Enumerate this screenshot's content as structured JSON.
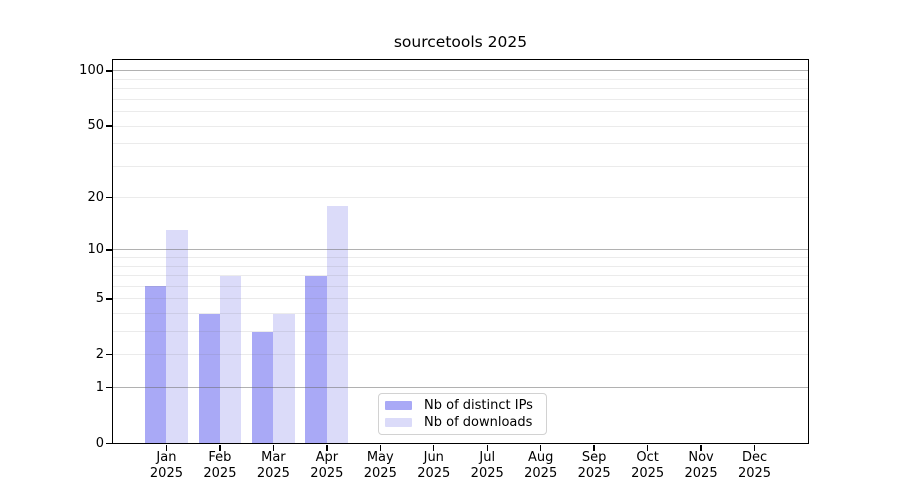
{
  "figure": {
    "background": "#ffffff",
    "title": "sourcetools 2025"
  },
  "chart_data": {
    "type": "bar",
    "title": "sourcetools 2025",
    "x": {
      "categories": [
        "Jan",
        "Feb",
        "Mar",
        "Apr",
        "May",
        "Jun",
        "Jul",
        "Aug",
        "Sep",
        "Oct",
        "Nov",
        "Dec"
      ],
      "year": "2025"
    },
    "series": [
      {
        "name": "Nb of distinct IPs",
        "color": "#a9a9f6",
        "values": [
          6,
          4,
          3,
          7,
          0,
          0,
          0,
          0,
          0,
          0,
          0,
          0
        ]
      },
      {
        "name": "Nb of downloads",
        "color": "#dbdbf9",
        "values": [
          13,
          7,
          4,
          18,
          0,
          0,
          0,
          0,
          0,
          0,
          0,
          0
        ]
      }
    ],
    "y_axis": {
      "scale": "log1p",
      "tick_labels": [
        0,
        1,
        2,
        5,
        10,
        20,
        50,
        100
      ],
      "max": 114.6
    },
    "grid": {
      "major": [
        1,
        10,
        100
      ],
      "minor": [
        2,
        3,
        4,
        5,
        6,
        7,
        8,
        9,
        20,
        30,
        40,
        50,
        60,
        70,
        80,
        90
      ],
      "major_color": "rgba(105,105,105,0.52)",
      "minor_color": "rgba(120,120,120,0.15)"
    },
    "legend": {
      "position": "lower center-left",
      "entries": [
        "Nb of distinct IPs",
        "Nb of downloads"
      ]
    }
  }
}
